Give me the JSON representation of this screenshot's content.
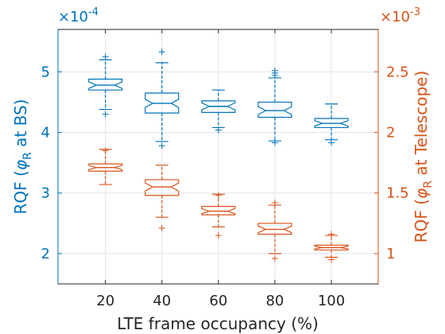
{
  "chart_data": {
    "type": "boxplot",
    "categories": [
      "20",
      "40",
      "60",
      "80",
      "100"
    ],
    "xlabel": "LTE frame occupancy (%)",
    "grid": true,
    "left_axis": {
      "label_prefix": "RQF (",
      "label_phi": "φ",
      "label_sub": "R",
      "label_suffix": " at BS)",
      "multiplier": "×10",
      "exponent": "-4",
      "ticks": [
        2,
        3,
        4,
        5
      ],
      "tick_labels": [
        "2",
        "3",
        "4",
        "5"
      ],
      "ylim": [
        1.5,
        5.7
      ],
      "color": "#0072bd"
    },
    "right_axis": {
      "label_prefix": "RQF (",
      "label_phi": "φ",
      "label_sub": "R",
      "label_suffix": " at Telescope)",
      "multiplier": "×10",
      "exponent": "-3",
      "ticks": [
        1,
        1.5,
        2,
        2.5
      ],
      "tick_labels": [
        "1",
        "1.5",
        "2",
        "2.5"
      ],
      "ylim": [
        0.75,
        2.85
      ],
      "color": "#d95319"
    },
    "series": [
      {
        "axis": "left",
        "boxes": [
          {
            "category": "20",
            "whisker_low": 4.38,
            "q1": 4.7,
            "median": 4.78,
            "q3": 4.88,
            "whisker_high": 5.2,
            "outliers": [
              4.3,
              5.25
            ]
          },
          {
            "category": "40",
            "whisker_low": 3.85,
            "q1": 4.32,
            "median": 4.48,
            "q3": 4.65,
            "whisker_high": 5.15,
            "outliers": [
              3.78,
              5.33
            ]
          },
          {
            "category": "60",
            "whisker_low": 4.08,
            "q1": 4.33,
            "median": 4.43,
            "q3": 4.52,
            "whisker_high": 4.7,
            "outliers": [
              4.04
            ]
          },
          {
            "category": "80",
            "whisker_low": 3.86,
            "q1": 4.25,
            "median": 4.36,
            "q3": 4.5,
            "whisker_high": 4.9,
            "outliers": [
              3.83,
              4.94,
              4.98,
              5.02
            ]
          },
          {
            "category": "100",
            "whisker_low": 3.88,
            "q1": 4.08,
            "median": 4.15,
            "q3": 4.23,
            "whisker_high": 4.47,
            "outliers": [
              3.83
            ]
          }
        ]
      },
      {
        "axis": "right",
        "boxes": [
          {
            "category": "20",
            "whisker_low": 1.57,
            "q1": 1.68,
            "median": 1.71,
            "q3": 1.74,
            "whisker_high": 1.86,
            "outliers": [
              1.85
            ]
          },
          {
            "category": "40",
            "whisker_low": 1.3,
            "q1": 1.48,
            "median": 1.55,
            "q3": 1.61,
            "whisker_high": 1.73,
            "outliers": [
              1.21
            ]
          },
          {
            "category": "60",
            "whisker_low": 1.22,
            "q1": 1.32,
            "median": 1.35,
            "q3": 1.39,
            "whisker_high": 1.49,
            "outliers": [
              1.15,
              1.48
            ]
          },
          {
            "category": "80",
            "whisker_low": 1.0,
            "q1": 1.16,
            "median": 1.2,
            "q3": 1.25,
            "whisker_high": 1.4,
            "outliers": [
              0.96,
              1.42
            ]
          },
          {
            "category": "100",
            "whisker_low": 0.97,
            "q1": 1.03,
            "median": 1.05,
            "q3": 1.07,
            "whisker_high": 1.15,
            "outliers": [
              0.95,
              1.16
            ]
          }
        ]
      }
    ]
  }
}
